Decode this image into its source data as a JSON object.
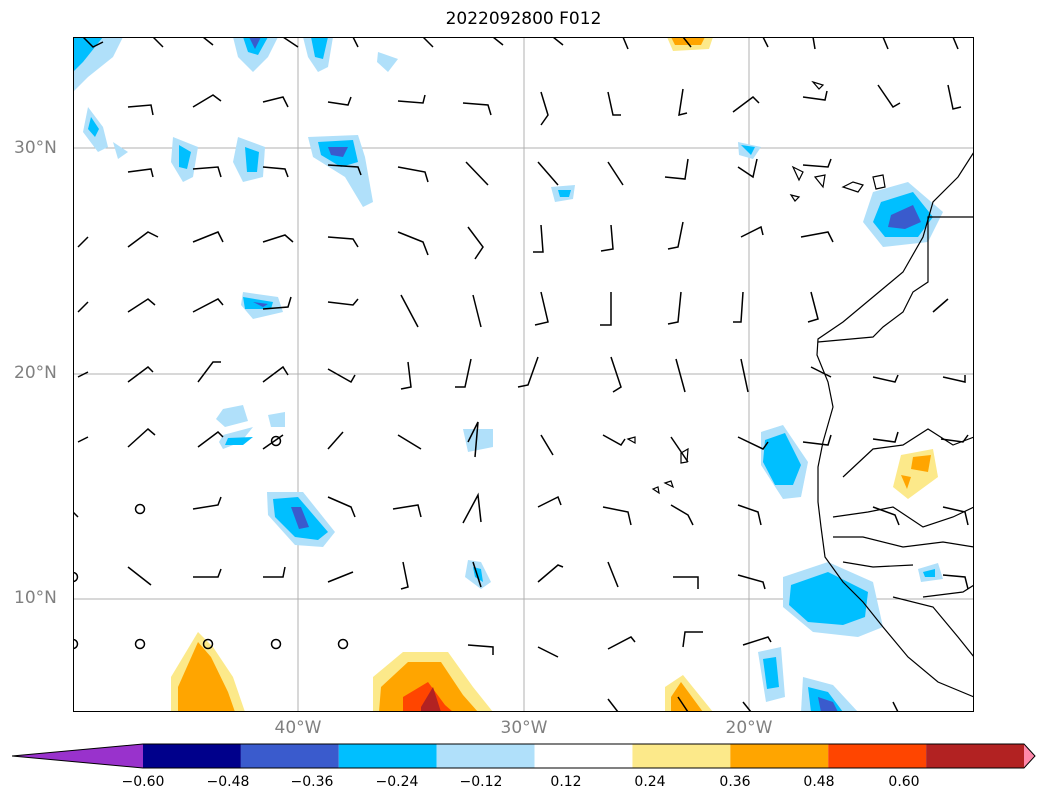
{
  "title": "2022092800 F012",
  "lat_labels": [
    "30°N",
    "20°N",
    "10°N"
  ],
  "lon_labels": [
    "40°W",
    "30°W",
    "20°W"
  ],
  "colorbar": {
    "ticks": [
      "−0.60",
      "−0.48",
      "−0.36",
      "−0.24",
      "−0.12",
      "0.12",
      "0.24",
      "0.36",
      "0.48",
      "0.60"
    ],
    "colors": [
      "#9932cc",
      "#00008b",
      "#3a5bcd",
      "#00bfff",
      "#b0e0fa",
      "#ffffff",
      "#fce98a",
      "#ffa500",
      "#ff4500",
      "#b22222",
      "#ff88aa"
    ]
  },
  "legend_colors": {
    "gridline": "#b0b0b0",
    "coast": "#000000"
  }
}
